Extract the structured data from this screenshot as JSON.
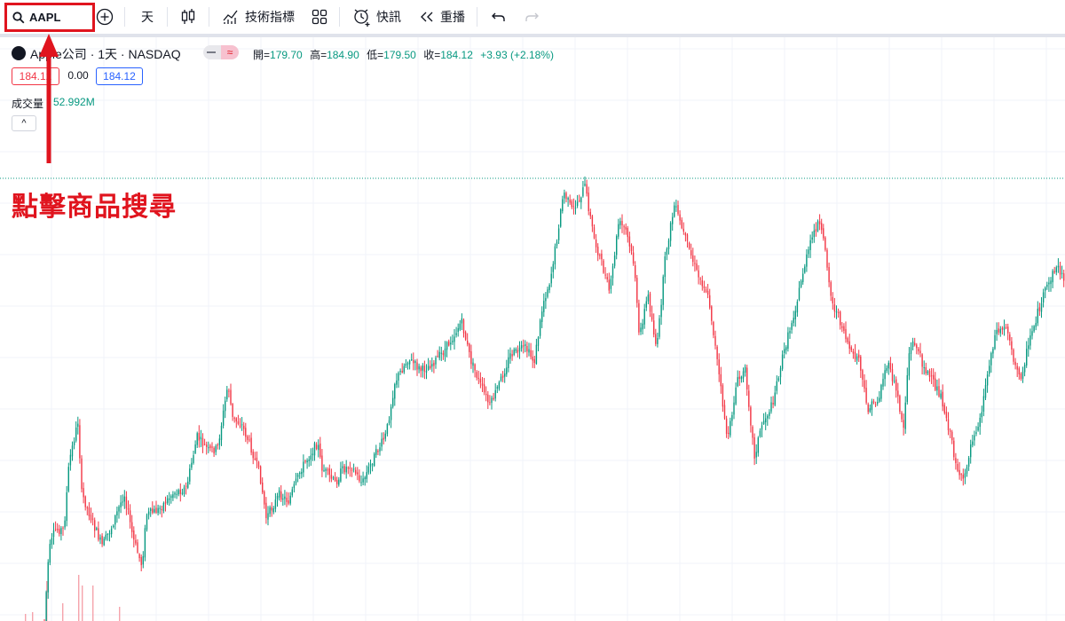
{
  "toolbar": {
    "symbol": "AAPL",
    "interval": "天",
    "indicators_label": "技術指標",
    "alert_label": "快訊",
    "replay_label": "重播"
  },
  "legend": {
    "symbol_title": "Apple公司 · 1天 · NASDAQ",
    "open_label": "開=",
    "open_value": "179.70",
    "high_label": "高=",
    "high_value": "184.90",
    "low_label": "低=",
    "low_value": "179.50",
    "close_label": "收=",
    "close_value": "184.12",
    "change": "+3.93 (+2.18%)",
    "bid": "184.12",
    "spread": "0.00",
    "ask": "184.12",
    "volume_label": "成交量",
    "volume_value": "52.992M",
    "collapse_glyph": "^"
  },
  "annotation": {
    "text": "點擊商品搜尋",
    "color": "#e0141e"
  },
  "colors": {
    "up": "#089981",
    "down": "#f23645",
    "grid": "#f0f3fa"
  },
  "chart_data": {
    "type": "candlestick",
    "interval": "1天",
    "symbol": "AAPL",
    "path": [
      [
        0,
        8
      ],
      [
        50,
        700
      ],
      [
        55,
        622
      ],
      [
        62,
        597
      ],
      [
        72,
        597
      ],
      [
        78,
        520
      ],
      [
        88,
        474
      ],
      [
        92,
        556
      ],
      [
        108,
        598
      ],
      [
        115,
        615
      ],
      [
        125,
        596
      ],
      [
        140,
        556
      ],
      [
        150,
        607
      ],
      [
        160,
        638
      ],
      [
        165,
        580
      ],
      [
        178,
        575
      ],
      [
        195,
        556
      ],
      [
        210,
        550
      ],
      [
        222,
        492
      ],
      [
        235,
        508
      ],
      [
        245,
        506
      ],
      [
        257,
        432
      ],
      [
        262,
        472
      ],
      [
        272,
        478
      ],
      [
        282,
        502
      ],
      [
        293,
        536
      ],
      [
        300,
        584
      ],
      [
        315,
        557
      ],
      [
        325,
        565
      ],
      [
        340,
        527
      ],
      [
        358,
        499
      ],
      [
        362,
        526
      ],
      [
        378,
        545
      ],
      [
        385,
        530
      ],
      [
        395,
        524
      ],
      [
        408,
        545
      ],
      [
        420,
        518
      ],
      [
        435,
        490
      ],
      [
        445,
        430
      ],
      [
        460,
        404
      ],
      [
        475,
        418
      ],
      [
        490,
        407
      ],
      [
        500,
        396
      ],
      [
        512,
        377
      ],
      [
        520,
        362
      ],
      [
        530,
        405
      ],
      [
        541,
        433
      ],
      [
        552,
        458
      ],
      [
        564,
        429
      ],
      [
        575,
        400
      ],
      [
        592,
        392
      ],
      [
        602,
        408
      ],
      [
        612,
        341
      ],
      [
        620,
        315
      ],
      [
        628,
        265
      ],
      [
        635,
        216
      ],
      [
        645,
        238
      ],
      [
        652,
        225
      ],
      [
        659,
        210
      ],
      [
        670,
        272
      ],
      [
        676,
        290
      ],
      [
        687,
        330
      ],
      [
        697,
        251
      ],
      [
        705,
        259
      ],
      [
        715,
        301
      ],
      [
        720,
        380
      ],
      [
        730,
        332
      ],
      [
        740,
        395
      ],
      [
        750,
        286
      ],
      [
        760,
        231
      ],
      [
        768,
        257
      ],
      [
        778,
        286
      ],
      [
        786,
        310
      ],
      [
        795,
        325
      ],
      [
        800,
        345
      ],
      [
        810,
        422
      ],
      [
        820,
        498
      ],
      [
        830,
        431
      ],
      [
        840,
        418
      ],
      [
        850,
        515
      ],
      [
        858,
        479
      ],
      [
        870,
        456
      ],
      [
        880,
        410
      ],
      [
        892,
        363
      ],
      [
        898,
        340
      ],
      [
        905,
        305
      ],
      [
        915,
        268
      ],
      [
        922,
        250
      ],
      [
        930,
        280
      ],
      [
        937,
        340
      ],
      [
        950,
        370
      ],
      [
        960,
        402
      ],
      [
        968,
        404
      ],
      [
        977,
        462
      ],
      [
        990,
        451
      ],
      [
        995,
        425
      ],
      [
        1000,
        410
      ],
      [
        1010,
        440
      ],
      [
        1018,
        483
      ],
      [
        1024,
        399
      ],
      [
        1030,
        384
      ],
      [
        1040,
        411
      ],
      [
        1052,
        433
      ],
      [
        1060,
        445
      ],
      [
        1068,
        478
      ],
      [
        1078,
        526
      ],
      [
        1085,
        545
      ],
      [
        1095,
        495
      ],
      [
        1105,
        470
      ],
      [
        1115,
        406
      ],
      [
        1122,
        374
      ],
      [
        1135,
        368
      ],
      [
        1145,
        418
      ],
      [
        1150,
        425
      ],
      [
        1162,
        376
      ],
      [
        1175,
        335
      ],
      [
        1190,
        300
      ],
      [
        1200,
        315
      ]
    ]
  }
}
